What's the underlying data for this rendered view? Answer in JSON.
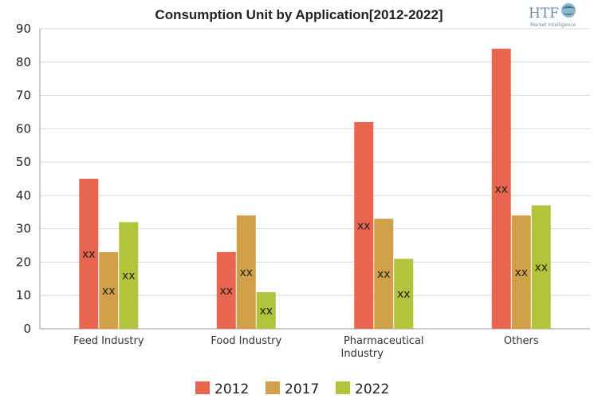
{
  "chart_data": {
    "type": "bar",
    "title": "Consumption Unit by  Application[2012-2022]",
    "xlabel": "",
    "ylabel": "",
    "ylim": [
      0,
      90
    ],
    "yticks": [
      0,
      10,
      20,
      30,
      40,
      50,
      60,
      70,
      80,
      90
    ],
    "grid": true,
    "legend_position": "bottom",
    "categories": [
      [
        "Feed Industry"
      ],
      [
        "Food Industry"
      ],
      [
        "Pharmaceutical",
        "Industry"
      ],
      [
        "Others"
      ]
    ],
    "series": [
      {
        "name": "2012",
        "color": "#e8654f",
        "values": [
          45,
          23,
          62,
          84
        ]
      },
      {
        "name": "2017",
        "color": "#d1a14a",
        "values": [
          23,
          34,
          33,
          34
        ]
      },
      {
        "name": "2022",
        "color": "#b1c43c",
        "values": [
          32,
          11,
          21,
          37
        ]
      }
    ],
    "data_label_text": "xx"
  },
  "logo": {
    "brand": "HTF",
    "tagline": "Market Intelligence"
  }
}
